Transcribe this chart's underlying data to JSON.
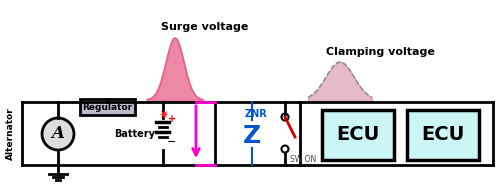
{
  "bg_color": "#ffffff",
  "surge_voltage_label": "Surge voltage",
  "clamping_voltage_label": "Clamping voltage",
  "alternator_label": "Alternator",
  "battery_label": "Battery",
  "regulator_label": "Regulator",
  "znr_label": "ZNR",
  "sw_label": "SW ON",
  "ecu_label": "ECU",
  "surge_color": "#e8608a",
  "clamping_color": "#cc7799",
  "znr_color": "#0055cc",
  "arrow_color": "#ff00cc",
  "switch_color": "#cc0000",
  "ecu_bg": "#ccf5f5",
  "regulator_bg": "#aaaacc",
  "line_color": "#000000",
  "fig_w": 5.03,
  "fig_h": 1.95,
  "dpi": 100
}
